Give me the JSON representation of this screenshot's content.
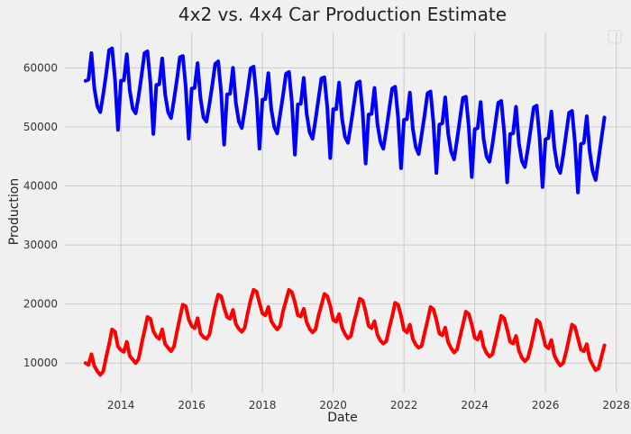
{
  "chart_data": {
    "type": "line",
    "title": "4x2 vs. 4x4 Car Production Estimate",
    "xlabel": "Date",
    "ylabel": "Production",
    "xlim": [
      "2012-06-01",
      "2028-06-01"
    ],
    "ylim": [
      5000,
      66000
    ],
    "x_ticks": [
      "2014",
      "2016",
      "2018",
      "2020",
      "2022",
      "2024",
      "2026",
      "2028"
    ],
    "y_ticks": [
      10000,
      20000,
      30000,
      40000,
      50000,
      60000
    ],
    "y_tick_labels": [
      "10000",
      "20000",
      "30000",
      "40000",
      "50000",
      "60000"
    ],
    "grid": true,
    "legend": "top-right",
    "series": [
      {
        "color": "#0000ff",
        "x": [
          "2013-01",
          "2013-02",
          "2013-03",
          "2013-04",
          "2013-05",
          "2013-06",
          "2013-07",
          "2013-08",
          "2013-09",
          "2013-10",
          "2013-11",
          "2013-12",
          "2014-01",
          "2014-02",
          "2014-03",
          "2014-04",
          "2014-05",
          "2014-06",
          "2014-07",
          "2014-08",
          "2014-09",
          "2014-10",
          "2014-11",
          "2014-12",
          "2015-01",
          "2015-02",
          "2015-03",
          "2015-04",
          "2015-05",
          "2015-06",
          "2015-07",
          "2015-08",
          "2015-09",
          "2015-10",
          "2015-11",
          "2015-12",
          "2016-01",
          "2016-02",
          "2016-03",
          "2016-04",
          "2016-05",
          "2016-06",
          "2016-07",
          "2016-08",
          "2016-09",
          "2016-10",
          "2016-11",
          "2016-12",
          "2017-01",
          "2017-02",
          "2017-03",
          "2017-04",
          "2017-05",
          "2017-06",
          "2017-07",
          "2017-08",
          "2017-09",
          "2017-10",
          "2017-11",
          "2017-12",
          "2018-01",
          "2018-02",
          "2018-03",
          "2018-04",
          "2018-05",
          "2018-06",
          "2018-07",
          "2018-08",
          "2018-09",
          "2018-10",
          "2018-11",
          "2018-12",
          "2019-01",
          "2019-02",
          "2019-03",
          "2019-04",
          "2019-05",
          "2019-06",
          "2019-07",
          "2019-08",
          "2019-09",
          "2019-10",
          "2019-11",
          "2019-12",
          "2020-01",
          "2020-02",
          "2020-03",
          "2020-04",
          "2020-05",
          "2020-06",
          "2020-07",
          "2020-08",
          "2020-09",
          "2020-10",
          "2020-11",
          "2020-12",
          "2021-01",
          "2021-02",
          "2021-03",
          "2021-04",
          "2021-05",
          "2021-06",
          "2021-07",
          "2021-08",
          "2021-09",
          "2021-10",
          "2021-11",
          "2021-12",
          "2022-01",
          "2022-02",
          "2022-03",
          "2022-04",
          "2022-05",
          "2022-06",
          "2022-07",
          "2022-08",
          "2022-09",
          "2022-10",
          "2022-11",
          "2022-12",
          "2023-01",
          "2023-02",
          "2023-03",
          "2023-04",
          "2023-05",
          "2023-06",
          "2023-07",
          "2023-08",
          "2023-09",
          "2023-10",
          "2023-11",
          "2023-12",
          "2024-01",
          "2024-02",
          "2024-03",
          "2024-04",
          "2024-05",
          "2024-06",
          "2024-07",
          "2024-08",
          "2024-09",
          "2024-10",
          "2024-11",
          "2024-12",
          "2025-01",
          "2025-02",
          "2025-03",
          "2025-04",
          "2025-05",
          "2025-06",
          "2025-07",
          "2025-08",
          "2025-09",
          "2025-10",
          "2025-11",
          "2025-12",
          "2026-01",
          "2026-02",
          "2026-03",
          "2026-04",
          "2026-05",
          "2026-06",
          "2026-07",
          "2026-08",
          "2026-09",
          "2026-10",
          "2026-11",
          "2026-12",
          "2027-01",
          "2027-02",
          "2027-03",
          "2027-04",
          "2027-05",
          "2027-06",
          "2027-07",
          "2027-08",
          "2027-09"
        ],
        "values": [
          57800,
          58000,
          62500,
          56500,
          53500,
          52500,
          55500,
          59000,
          63000,
          63300,
          58000,
          49500,
          57800,
          57900,
          62300,
          56200,
          53100,
          52300,
          55200,
          58700,
          62500,
          62800,
          57500,
          48800,
          57100,
          57200,
          61600,
          55500,
          52500,
          51500,
          54600,
          58000,
          61800,
          62000,
          56700,
          48000,
          56500,
          56600,
          60800,
          54800,
          51600,
          50900,
          53800,
          57100,
          60700,
          61100,
          55800,
          47000,
          55500,
          55600,
          60000,
          54000,
          50900,
          49800,
          52900,
          56300,
          59900,
          60200,
          55000,
          46300,
          54600,
          54700,
          59100,
          53000,
          50000,
          48900,
          52100,
          55400,
          59000,
          59300,
          54100,
          45300,
          53800,
          53900,
          58300,
          52200,
          49100,
          48000,
          51200,
          54700,
          58200,
          58400,
          53300,
          44700,
          53000,
          53000,
          57500,
          51400,
          48300,
          47300,
          50400,
          53800,
          57400,
          57700,
          52500,
          43800,
          52100,
          52200,
          56600,
          50500,
          47500,
          46300,
          49500,
          53000,
          56500,
          56800,
          51600,
          43000,
          51200,
          51300,
          55800,
          49700,
          46600,
          45400,
          48700,
          52000,
          55700,
          56000,
          50700,
          42200,
          50400,
          50600,
          55000,
          48800,
          45800,
          44500,
          47800,
          51400,
          54900,
          55100,
          49900,
          41500,
          49600,
          49800,
          54200,
          48000,
          45000,
          44100,
          47000,
          50600,
          54100,
          54400,
          49100,
          40600,
          48800,
          48900,
          53400,
          47200,
          44200,
          43200,
          46200,
          49700,
          53300,
          53600,
          48200,
          39800,
          47900,
          48100,
          52600,
          46500,
          43300,
          42200,
          45200,
          48800,
          52400,
          52700,
          47300,
          38900,
          47100,
          47300,
          51800,
          45800,
          42500,
          41000,
          44500,
          48100,
          51600
        ],
        "style": {
          "stroke_width": 4
        }
      },
      {
        "color": "#ff0000",
        "x": [
          "2013-01",
          "2013-02",
          "2013-03",
          "2013-04",
          "2013-05",
          "2013-06",
          "2013-07",
          "2013-08",
          "2013-09",
          "2013-10",
          "2013-11",
          "2013-12",
          "2014-01",
          "2014-02",
          "2014-03",
          "2014-04",
          "2014-05",
          "2014-06",
          "2014-07",
          "2014-08",
          "2014-09",
          "2014-10",
          "2014-11",
          "2014-12",
          "2015-01",
          "2015-02",
          "2015-03",
          "2015-04",
          "2015-05",
          "2015-06",
          "2015-07",
          "2015-08",
          "2015-09",
          "2015-10",
          "2015-11",
          "2015-12",
          "2016-01",
          "2016-02",
          "2016-03",
          "2016-04",
          "2016-05",
          "2016-06",
          "2016-07",
          "2016-08",
          "2016-09",
          "2016-10",
          "2016-11",
          "2016-12",
          "2017-01",
          "2017-02",
          "2017-03",
          "2017-04",
          "2017-05",
          "2017-06",
          "2017-07",
          "2017-08",
          "2017-09",
          "2017-10",
          "2017-11",
          "2017-12",
          "2018-01",
          "2018-02",
          "2018-03",
          "2018-04",
          "2018-05",
          "2018-06",
          "2018-07",
          "2018-08",
          "2018-09",
          "2018-10",
          "2018-11",
          "2018-12",
          "2019-01",
          "2019-02",
          "2019-03",
          "2019-04",
          "2019-05",
          "2019-06",
          "2019-07",
          "2019-08",
          "2019-09",
          "2019-10",
          "2019-11",
          "2019-12",
          "2020-01",
          "2020-02",
          "2020-03",
          "2020-04",
          "2020-05",
          "2020-06",
          "2020-07",
          "2020-08",
          "2020-09",
          "2020-10",
          "2020-11",
          "2020-12",
          "2021-01",
          "2021-02",
          "2021-03",
          "2021-04",
          "2021-05",
          "2021-06",
          "2021-07",
          "2021-08",
          "2021-09",
          "2021-10",
          "2021-11",
          "2021-12",
          "2022-01",
          "2022-02",
          "2022-03",
          "2022-04",
          "2022-05",
          "2022-06",
          "2022-07",
          "2022-08",
          "2022-09",
          "2022-10",
          "2022-11",
          "2022-12",
          "2023-01",
          "2023-02",
          "2023-03",
          "2023-04",
          "2023-05",
          "2023-06",
          "2023-07",
          "2023-08",
          "2023-09",
          "2023-10",
          "2023-11",
          "2023-12",
          "2024-01",
          "2024-02",
          "2024-03",
          "2024-04",
          "2024-05",
          "2024-06",
          "2024-07",
          "2024-08",
          "2024-09",
          "2024-10",
          "2024-11",
          "2024-12",
          "2025-01",
          "2025-02",
          "2025-03",
          "2025-04",
          "2025-05",
          "2025-06",
          "2025-07",
          "2025-08",
          "2025-09",
          "2025-10",
          "2025-11",
          "2025-12",
          "2026-01",
          "2026-02",
          "2026-03",
          "2026-04",
          "2026-05",
          "2026-06",
          "2026-07",
          "2026-08",
          "2026-09",
          "2026-10",
          "2026-11",
          "2026-12",
          "2027-01",
          "2027-02",
          "2027-03",
          "2027-04",
          "2027-05",
          "2027-06",
          "2027-07",
          "2027-08",
          "2027-09"
        ],
        "values": [
          10000,
          9700,
          11500,
          9500,
          8600,
          8000,
          8600,
          11000,
          13200,
          15700,
          15300,
          12800,
          12200,
          11900,
          13600,
          11200,
          10600,
          10000,
          10700,
          13200,
          15500,
          17800,
          17500,
          15400,
          14500,
          14100,
          15700,
          13200,
          12600,
          12000,
          12800,
          15300,
          17700,
          19900,
          19600,
          17400,
          16300,
          15900,
          17600,
          15000,
          14400,
          14100,
          14800,
          17300,
          19700,
          21600,
          21300,
          19400,
          17800,
          17500,
          19000,
          16600,
          15800,
          15300,
          16000,
          18500,
          20700,
          22400,
          22100,
          20200,
          18400,
          18100,
          19500,
          17100,
          16300,
          15700,
          16300,
          18800,
          20600,
          22400,
          22000,
          20300,
          18100,
          17900,
          19200,
          16900,
          15800,
          15200,
          15700,
          18000,
          19800,
          21700,
          21300,
          19700,
          17300,
          17000,
          18300,
          16000,
          14900,
          14200,
          14600,
          16900,
          18800,
          20900,
          20600,
          18700,
          16300,
          15900,
          17100,
          14800,
          13800,
          13300,
          13700,
          15900,
          17900,
          20200,
          19900,
          18000,
          15600,
          15200,
          16500,
          14100,
          13100,
          12600,
          12900,
          15100,
          17200,
          19500,
          19100,
          17300,
          15000,
          14700,
          16000,
          13500,
          12500,
          11800,
          12300,
          14400,
          16500,
          18700,
          18300,
          16500,
          14300,
          14000,
          15300,
          12800,
          11700,
          11100,
          11500,
          13600,
          15800,
          18000,
          17600,
          15700,
          13600,
          13300,
          14600,
          12100,
          10900,
          10300,
          10800,
          12700,
          14900,
          17300,
          16900,
          15000,
          12900,
          12500,
          13900,
          11300,
          10300,
          9600,
          10000,
          11900,
          14200,
          16500,
          16100,
          14200,
          12300,
          12000,
          13200,
          10700,
          9700,
          8800,
          9100,
          11100,
          13000
        ],
        "style": {
          "stroke_width": 4
        }
      }
    ]
  }
}
